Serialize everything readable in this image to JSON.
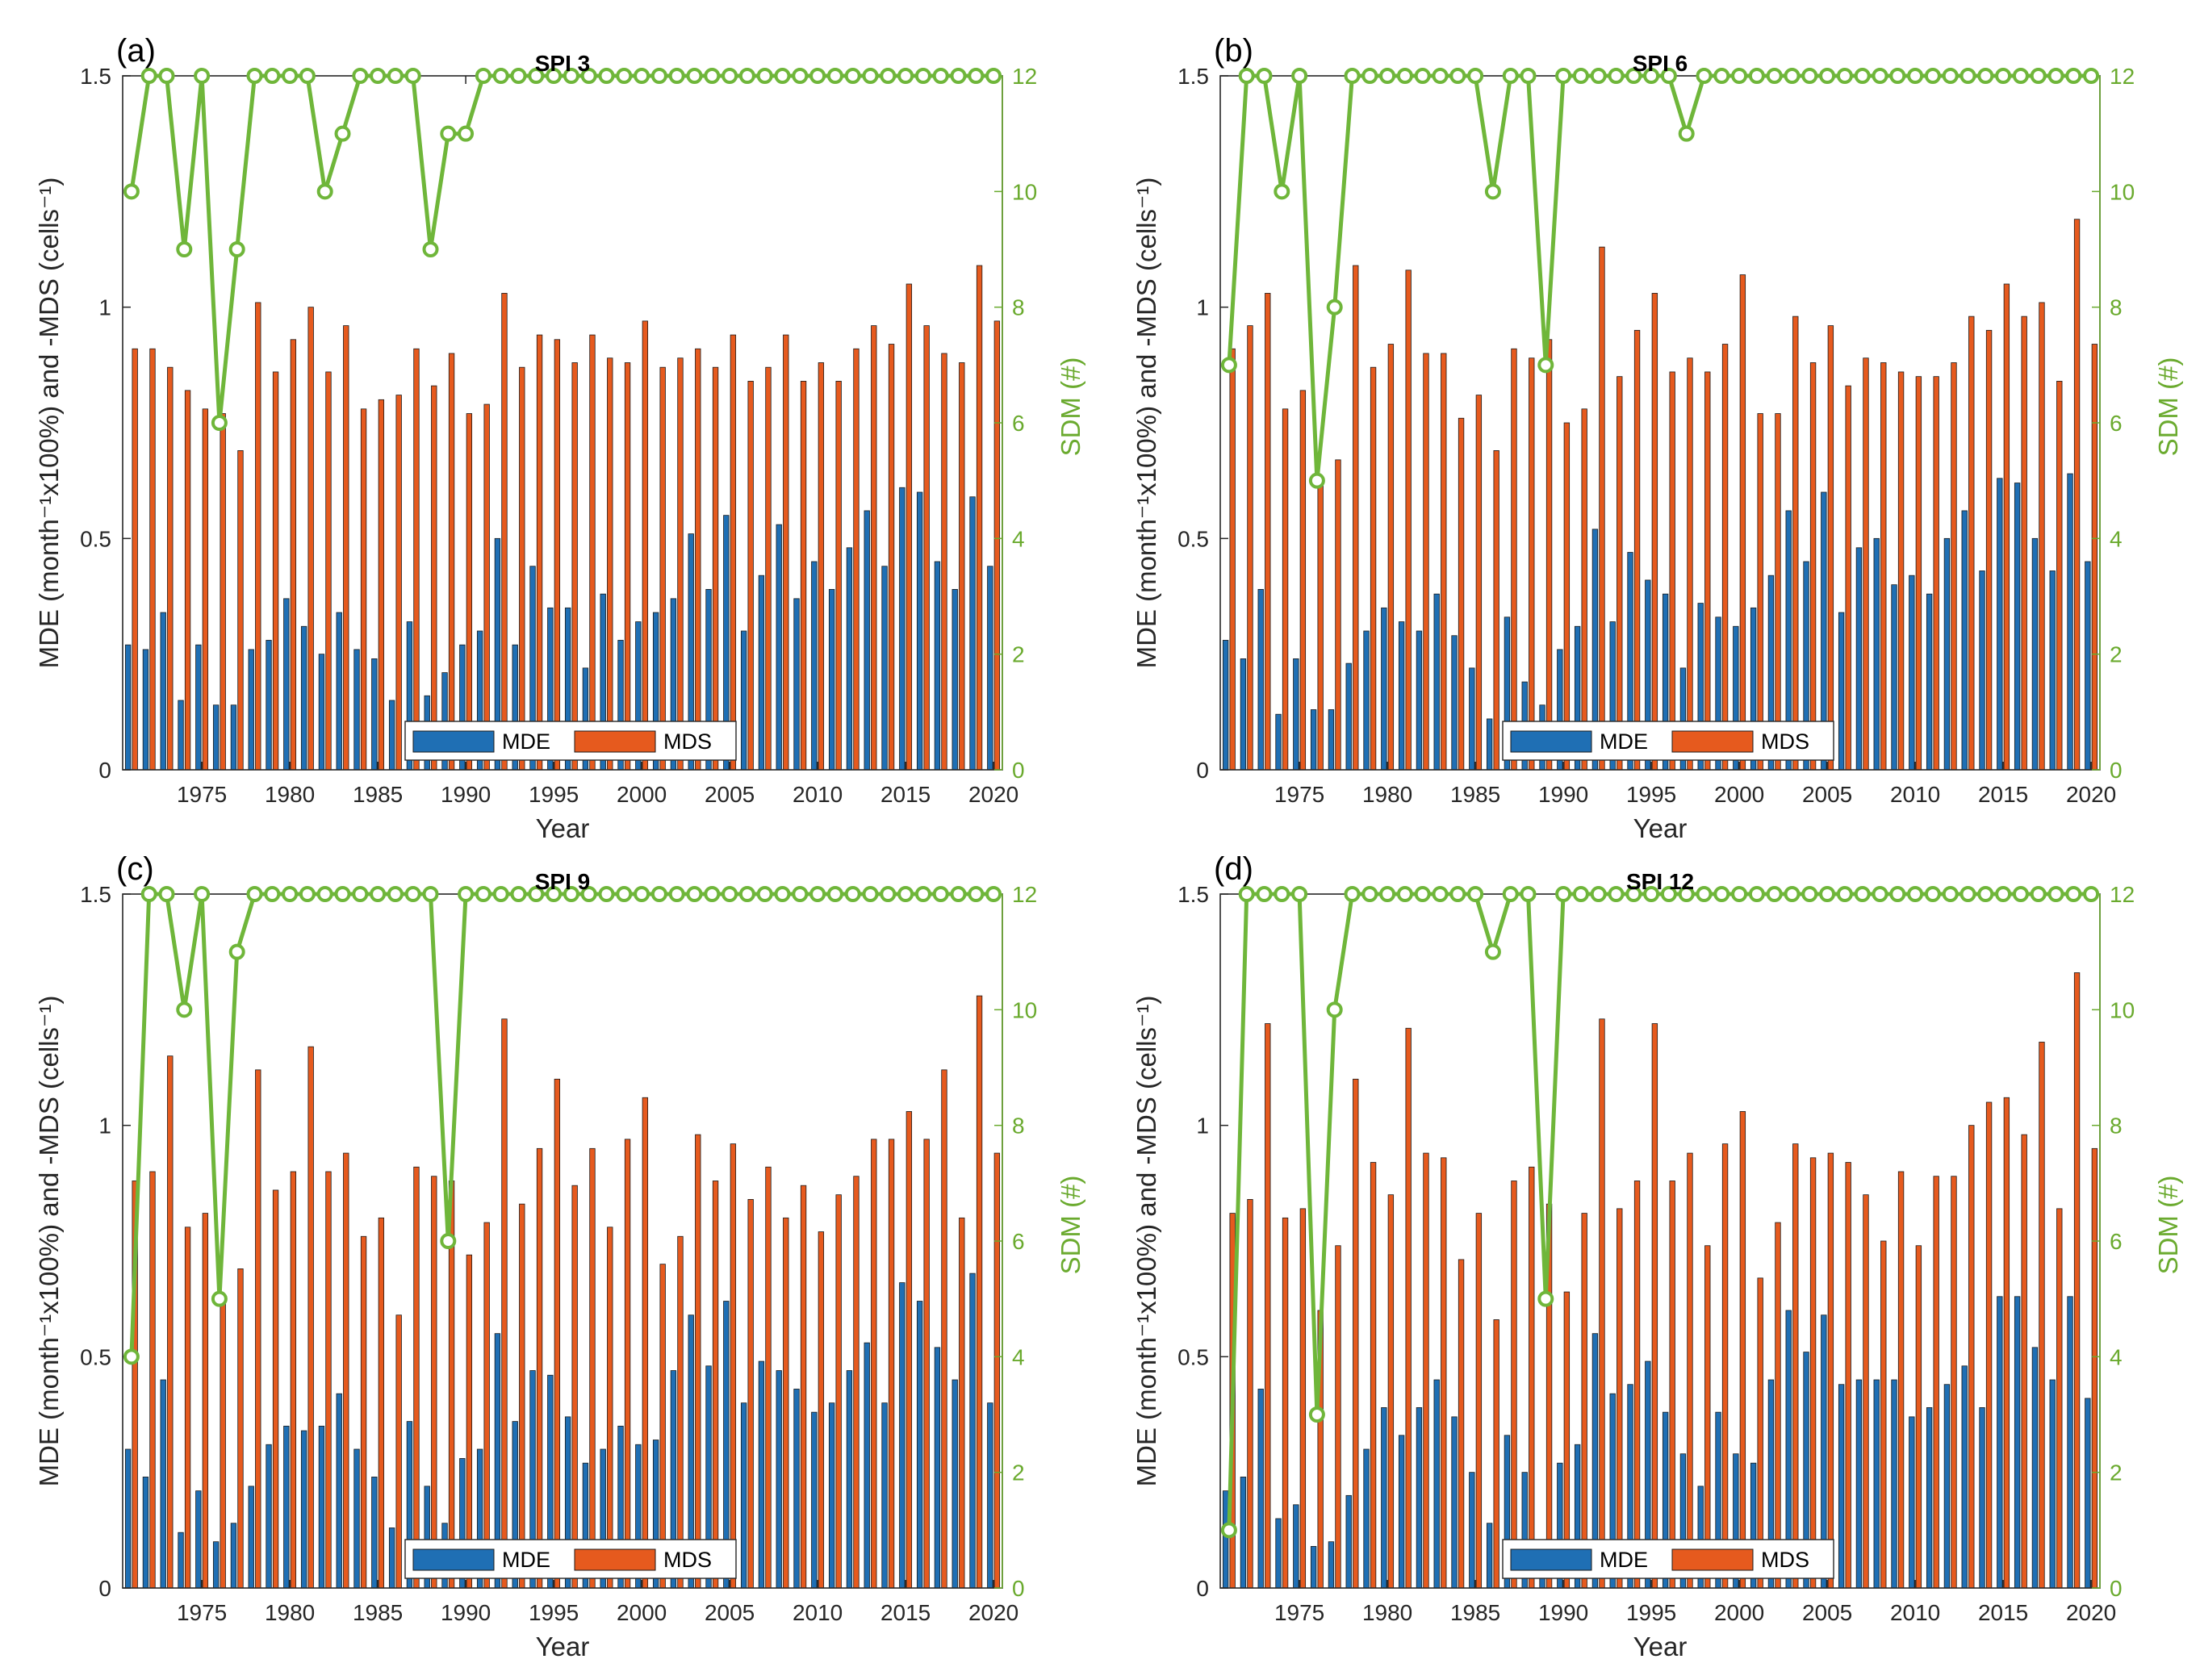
{
  "figure": {
    "colors": {
      "MDE": "#1f6fb4",
      "MDS": "#e65a1e",
      "SDM": "#6fb63a",
      "axis": "#262626",
      "sdm_axis": "#6aaa2e"
    }
  },
  "chart_data": [
    {
      "type": "bar",
      "panel_letter": "(a)",
      "title": "SPI 3",
      "xlabel": "Year",
      "ylabel_left": "MDE (month⁻¹x100%) and -MDS (cells⁻¹)",
      "ylabel_right": "SDM (#)",
      "ylim_left": [
        0,
        1.5
      ],
      "ylim_right": [
        0,
        12
      ],
      "yticks_left": [
        "0",
        "0.5",
        "1",
        "1.5"
      ],
      "yticks_right": [
        "0",
        "2",
        "4",
        "6",
        "8",
        "10",
        "12"
      ],
      "xticks": [
        "1975",
        "1980",
        "1985",
        "1990",
        "1995",
        "2000",
        "2005",
        "2010",
        "2015",
        "2020"
      ],
      "legend": [
        "MDE",
        "MDS"
      ],
      "legend_position": "bottom-center",
      "years": [
        1971,
        1972,
        1973,
        1974,
        1975,
        1976,
        1977,
        1978,
        1979,
        1980,
        1981,
        1982,
        1983,
        1984,
        1985,
        1986,
        1987,
        1988,
        1989,
        1990,
        1991,
        1992,
        1993,
        1994,
        1995,
        1996,
        1997,
        1998,
        1999,
        2000,
        2001,
        2002,
        2003,
        2004,
        2005,
        2006,
        2007,
        2008,
        2009,
        2010,
        2011,
        2012,
        2013,
        2014,
        2015,
        2016,
        2017,
        2018,
        2019,
        2020
      ],
      "series": [
        {
          "name": "MDE",
          "values": [
            0.27,
            0.26,
            0.34,
            0.15,
            0.27,
            0.14,
            0.14,
            0.26,
            0.28,
            0.37,
            0.31,
            0.25,
            0.34,
            0.26,
            0.24,
            0.15,
            0.32,
            0.16,
            0.21,
            0.27,
            0.3,
            0.5,
            0.27,
            0.44,
            0.35,
            0.35,
            0.22,
            0.38,
            0.28,
            0.32,
            0.34,
            0.37,
            0.51,
            0.39,
            0.55,
            0.3,
            0.42,
            0.53,
            0.37,
            0.45,
            0.39,
            0.48,
            0.56,
            0.44,
            0.61,
            0.6,
            0.45,
            0.39,
            0.59,
            0.44
          ]
        },
        {
          "name": "MDS",
          "values": [
            0.91,
            0.91,
            0.87,
            0.82,
            0.78,
            0.77,
            0.69,
            1.01,
            0.86,
            0.93,
            1.0,
            0.86,
            0.96,
            0.78,
            0.8,
            0.81,
            0.91,
            0.83,
            0.9,
            0.77,
            0.79,
            1.03,
            0.87,
            0.94,
            0.93,
            0.88,
            0.94,
            0.89,
            0.88,
            0.97,
            0.87,
            0.89,
            0.91,
            0.87,
            0.94,
            0.84,
            0.87,
            0.94,
            0.84,
            0.88,
            0.84,
            0.91,
            0.96,
            0.92,
            1.05,
            0.96,
            0.9,
            0.88,
            1.09,
            0.97
          ]
        },
        {
          "name": "SDM",
          "axis": "right",
          "values": [
            10,
            12,
            12,
            9,
            12,
            6,
            9,
            12,
            12,
            12,
            12,
            10,
            11,
            12,
            12,
            12,
            12,
            9,
            11,
            11,
            12,
            12,
            12,
            12,
            12,
            12,
            12,
            12,
            12,
            12,
            12,
            12,
            12,
            12,
            12,
            12,
            12,
            12,
            12,
            12,
            12,
            12,
            12,
            12,
            12,
            12,
            12,
            12,
            12,
            12
          ]
        }
      ]
    },
    {
      "type": "bar",
      "panel_letter": "(b)",
      "title": "SPI 6",
      "xlabel": "Year",
      "ylabel_left": "MDE (month⁻¹x100%) and -MDS (cells⁻¹)",
      "ylabel_right": "SDM (#)",
      "ylim_left": [
        0,
        1.5
      ],
      "ylim_right": [
        0,
        12
      ],
      "yticks_left": [
        "0",
        "0.5",
        "1",
        "1.5"
      ],
      "yticks_right": [
        "0",
        "2",
        "4",
        "6",
        "8",
        "10",
        "12"
      ],
      "xticks": [
        "1975",
        "1980",
        "1985",
        "1990",
        "1995",
        "2000",
        "2005",
        "2010",
        "2015",
        "2020"
      ],
      "legend": [
        "MDE",
        "MDS"
      ],
      "legend_position": "bottom-center",
      "years": [
        1971,
        1972,
        1973,
        1974,
        1975,
        1976,
        1977,
        1978,
        1979,
        1980,
        1981,
        1982,
        1983,
        1984,
        1985,
        1986,
        1987,
        1988,
        1989,
        1990,
        1991,
        1992,
        1993,
        1994,
        1995,
        1996,
        1997,
        1998,
        1999,
        2000,
        2001,
        2002,
        2003,
        2004,
        2005,
        2006,
        2007,
        2008,
        2009,
        2010,
        2011,
        2012,
        2013,
        2014,
        2015,
        2016,
        2017,
        2018,
        2019,
        2020
      ],
      "series": [
        {
          "name": "MDE",
          "values": [
            0.28,
            0.24,
            0.39,
            0.12,
            0.24,
            0.13,
            0.13,
            0.23,
            0.3,
            0.35,
            0.32,
            0.3,
            0.38,
            0.29,
            0.22,
            0.11,
            0.33,
            0.19,
            0.14,
            0.26,
            0.31,
            0.52,
            0.32,
            0.47,
            0.41,
            0.38,
            0.22,
            0.36,
            0.33,
            0.31,
            0.35,
            0.42,
            0.56,
            0.45,
            0.6,
            0.34,
            0.48,
            0.5,
            0.4,
            0.42,
            0.38,
            0.5,
            0.56,
            0.43,
            0.63,
            0.62,
            0.5,
            0.43,
            0.64,
            0.45
          ]
        },
        {
          "name": "MDS",
          "values": [
            0.91,
            0.96,
            1.03,
            0.78,
            0.82,
            0.62,
            0.67,
            1.09,
            0.87,
            0.92,
            1.08,
            0.9,
            0.9,
            0.76,
            0.81,
            0.69,
            0.91,
            0.89,
            0.93,
            0.75,
            0.78,
            1.13,
            0.85,
            0.95,
            1.03,
            0.86,
            0.89,
            0.86,
            0.92,
            1.07,
            0.77,
            0.77,
            0.98,
            0.88,
            0.96,
            0.83,
            0.89,
            0.88,
            0.86,
            0.85,
            0.85,
            0.88,
            0.98,
            0.95,
            1.05,
            0.98,
            1.01,
            0.84,
            1.19,
            0.92
          ]
        },
        {
          "name": "SDM",
          "axis": "right",
          "values": [
            7,
            12,
            12,
            10,
            12,
            5,
            8,
            12,
            12,
            12,
            12,
            12,
            12,
            12,
            12,
            10,
            12,
            12,
            7,
            12,
            12,
            12,
            12,
            12,
            12,
            12,
            11,
            12,
            12,
            12,
            12,
            12,
            12,
            12,
            12,
            12,
            12,
            12,
            12,
            12,
            12,
            12,
            12,
            12,
            12,
            12,
            12,
            12,
            12,
            12
          ]
        }
      ]
    },
    {
      "type": "bar",
      "panel_letter": "(c)",
      "title": "SPI 9",
      "xlabel": "Year",
      "ylabel_left": "MDE (month⁻¹x100%) and -MDS (cells⁻¹)",
      "ylabel_right": "SDM (#)",
      "ylim_left": [
        0,
        1.5
      ],
      "ylim_right": [
        0,
        12
      ],
      "yticks_left": [
        "0",
        "0.5",
        "1",
        "1.5"
      ],
      "yticks_right": [
        "0",
        "2",
        "4",
        "6",
        "8",
        "10",
        "12"
      ],
      "xticks": [
        "1975",
        "1980",
        "1985",
        "1990",
        "1995",
        "2000",
        "2005",
        "2010",
        "2015",
        "2020"
      ],
      "legend": [
        "MDE",
        "MDS"
      ],
      "legend_position": "bottom-center",
      "years": [
        1971,
        1972,
        1973,
        1974,
        1975,
        1976,
        1977,
        1978,
        1979,
        1980,
        1981,
        1982,
        1983,
        1984,
        1985,
        1986,
        1987,
        1988,
        1989,
        1990,
        1991,
        1992,
        1993,
        1994,
        1995,
        1996,
        1997,
        1998,
        1999,
        2000,
        2001,
        2002,
        2003,
        2004,
        2005,
        2006,
        2007,
        2008,
        2009,
        2010,
        2011,
        2012,
        2013,
        2014,
        2015,
        2016,
        2017,
        2018,
        2019,
        2020
      ],
      "series": [
        {
          "name": "MDE",
          "values": [
            0.3,
            0.24,
            0.45,
            0.12,
            0.21,
            0.1,
            0.14,
            0.22,
            0.31,
            0.35,
            0.34,
            0.35,
            0.42,
            0.3,
            0.24,
            0.13,
            0.36,
            0.22,
            0.14,
            0.28,
            0.3,
            0.55,
            0.36,
            0.47,
            0.46,
            0.37,
            0.27,
            0.3,
            0.35,
            0.31,
            0.32,
            0.47,
            0.59,
            0.48,
            0.62,
            0.4,
            0.49,
            0.47,
            0.43,
            0.38,
            0.4,
            0.47,
            0.53,
            0.4,
            0.66,
            0.62,
            0.52,
            0.45,
            0.68,
            0.4
          ]
        },
        {
          "name": "MDS",
          "values": [
            0.88,
            0.9,
            1.15,
            0.78,
            0.81,
            0.63,
            0.69,
            1.12,
            0.86,
            0.9,
            1.17,
            0.9,
            0.94,
            0.76,
            0.8,
            0.59,
            0.91,
            0.89,
            0.88,
            0.72,
            0.79,
            1.23,
            0.83,
            0.95,
            1.1,
            0.87,
            0.95,
            0.78,
            0.97,
            1.06,
            0.7,
            0.76,
            0.98,
            0.88,
            0.96,
            0.84,
            0.91,
            0.8,
            0.87,
            0.77,
            0.85,
            0.89,
            0.97,
            0.97,
            1.03,
            0.97,
            1.12,
            0.8,
            1.28,
            0.94
          ]
        },
        {
          "name": "SDM",
          "axis": "right",
          "values": [
            4,
            12,
            12,
            10,
            12,
            5,
            11,
            12,
            12,
            12,
            12,
            12,
            12,
            12,
            12,
            12,
            12,
            12,
            6,
            12,
            12,
            12,
            12,
            12,
            12,
            12,
            12,
            12,
            12,
            12,
            12,
            12,
            12,
            12,
            12,
            12,
            12,
            12,
            12,
            12,
            12,
            12,
            12,
            12,
            12,
            12,
            12,
            12,
            12,
            12
          ]
        }
      ]
    },
    {
      "type": "bar",
      "panel_letter": "(d)",
      "title": "SPI 12",
      "xlabel": "Year",
      "ylabel_left": "MDE (month⁻¹x100%) and -MDS (cells⁻¹)",
      "ylabel_right": "SDM (#)",
      "ylim_left": [
        0,
        1.5
      ],
      "ylim_right": [
        0,
        12
      ],
      "yticks_left": [
        "0",
        "0.5",
        "1",
        "1.5"
      ],
      "yticks_right": [
        "0",
        "2",
        "4",
        "6",
        "8",
        "10",
        "12"
      ],
      "xticks": [
        "1975",
        "1980",
        "1985",
        "1990",
        "1995",
        "2000",
        "2005",
        "2010",
        "2015",
        "2020"
      ],
      "legend": [
        "MDE",
        "MDS"
      ],
      "legend_position": "bottom-center",
      "years": [
        1971,
        1972,
        1973,
        1974,
        1975,
        1976,
        1977,
        1978,
        1979,
        1980,
        1981,
        1982,
        1983,
        1984,
        1985,
        1986,
        1987,
        1988,
        1989,
        1990,
        1991,
        1992,
        1993,
        1994,
        1995,
        1996,
        1997,
        1998,
        1999,
        2000,
        2001,
        2002,
        2003,
        2004,
        2005,
        2006,
        2007,
        2008,
        2009,
        2010,
        2011,
        2012,
        2013,
        2014,
        2015,
        2016,
        2017,
        2018,
        2019,
        2020
      ],
      "series": [
        {
          "name": "MDE",
          "values": [
            0.21,
            0.24,
            0.43,
            0.15,
            0.18,
            0.09,
            0.1,
            0.2,
            0.3,
            0.39,
            0.33,
            0.39,
            0.45,
            0.37,
            0.25,
            0.14,
            0.33,
            0.25,
            0.1,
            0.27,
            0.31,
            0.55,
            0.42,
            0.44,
            0.49,
            0.38,
            0.29,
            0.22,
            0.38,
            0.29,
            0.27,
            0.45,
            0.6,
            0.51,
            0.59,
            0.44,
            0.45,
            0.45,
            0.45,
            0.37,
            0.39,
            0.44,
            0.48,
            0.39,
            0.63,
            0.63,
            0.52,
            0.45,
            0.63,
            0.41
          ]
        },
        {
          "name": "MDS",
          "values": [
            0.81,
            0.84,
            1.22,
            0.8,
            0.82,
            0.6,
            0.74,
            1.1,
            0.92,
            0.85,
            1.21,
            0.94,
            0.93,
            0.71,
            0.81,
            0.58,
            0.88,
            0.91,
            0.83,
            0.64,
            0.81,
            1.23,
            0.82,
            0.88,
            1.22,
            0.88,
            0.94,
            0.74,
            0.96,
            1.03,
            0.67,
            0.79,
            0.96,
            0.93,
            0.94,
            0.92,
            0.85,
            0.75,
            0.9,
            0.74,
            0.89,
            0.89,
            1.0,
            1.05,
            1.06,
            0.98,
            1.18,
            0.82,
            1.33,
            0.95
          ]
        },
        {
          "name": "SDM",
          "axis": "right",
          "values": [
            1,
            12,
            12,
            12,
            12,
            3,
            10,
            12,
            12,
            12,
            12,
            12,
            12,
            12,
            12,
            11,
            12,
            12,
            5,
            12,
            12,
            12,
            12,
            12,
            12,
            12,
            12,
            12,
            12,
            12,
            12,
            12,
            12,
            12,
            12,
            12,
            12,
            12,
            12,
            12,
            12,
            12,
            12,
            12,
            12,
            12,
            12,
            12,
            12,
            12
          ]
        }
      ]
    }
  ]
}
